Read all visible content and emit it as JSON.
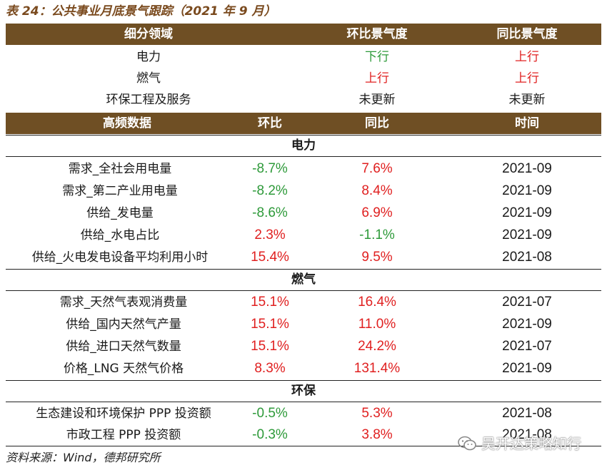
{
  "caption": "表 24：公共事业月底景气跟踪（2021 年 9 月）",
  "header1": {
    "segment": "细分领域",
    "mom": "环比景气度",
    "yoy": "同比景气度"
  },
  "segments": [
    {
      "name": "电力",
      "mom": "下行",
      "mom_dir": "down",
      "yoy": "上行",
      "yoy_dir": "up"
    },
    {
      "name": "燃气",
      "mom": "上行",
      "mom_dir": "up",
      "yoy": "上行",
      "yoy_dir": "up"
    },
    {
      "name": "环保工程及服务",
      "mom": "未更新",
      "mom_dir": "neutral",
      "yoy": "未更新",
      "yoy_dir": "neutral"
    }
  ],
  "header2": {
    "data": "高频数据",
    "mom": "环比",
    "yoy": "同比",
    "time": "时间"
  },
  "sections": [
    {
      "title": "电力",
      "rows": [
        {
          "name": "需求_全社会用电量",
          "mom": "-8.7%",
          "mom_dir": "down",
          "yoy": "7.6%",
          "yoy_dir": "up",
          "time": "2021-09"
        },
        {
          "name": "需求_第二产业用电量",
          "mom": "-8.2%",
          "mom_dir": "down",
          "yoy": "8.4%",
          "yoy_dir": "up",
          "time": "2021-09"
        },
        {
          "name": "供给_发电量",
          "mom": "-8.6%",
          "mom_dir": "down",
          "yoy": "6.9%",
          "yoy_dir": "up",
          "time": "2021-09"
        },
        {
          "name": "供给_水电占比",
          "mom": "2.3%",
          "mom_dir": "up",
          "yoy": "-1.1%",
          "yoy_dir": "down",
          "time": "2021-09"
        },
        {
          "name": "供给_火电发电设备平均利用小时",
          "mom": "15.4%",
          "mom_dir": "up",
          "yoy": "9.5%",
          "yoy_dir": "up",
          "time": "2021-08"
        }
      ]
    },
    {
      "title": "燃气",
      "rows": [
        {
          "name": "需求_天然气表观消费量",
          "mom": "15.1%",
          "mom_dir": "up",
          "yoy": "16.4%",
          "yoy_dir": "up",
          "time": "2021-07"
        },
        {
          "name": "供给_国内天然气产量",
          "mom": "15.1%",
          "mom_dir": "up",
          "yoy": "11.0%",
          "yoy_dir": "up",
          "time": "2021-09"
        },
        {
          "name": "供给_进口天然气数量",
          "mom": "15.1%",
          "mom_dir": "up",
          "yoy": "24.2%",
          "yoy_dir": "up",
          "time": "2021-07"
        },
        {
          "name": "价格_LNG 天然气价格",
          "mom": "8.3%",
          "mom_dir": "up",
          "yoy": "131.4%",
          "yoy_dir": "up",
          "time": "2021-09"
        }
      ]
    },
    {
      "title": "环保",
      "rows": [
        {
          "name": "生态建设和环境保护 PPP 投资额",
          "mom": "-0.5%",
          "mom_dir": "down",
          "yoy": "5.3%",
          "yoy_dir": "up",
          "time": "2021-08"
        },
        {
          "name": "市政工程 PPP 投资额",
          "mom": "-0.3%",
          "mom_dir": "down",
          "yoy": "3.8%",
          "yoy_dir": "up",
          "time": "2021-08"
        }
      ]
    }
  ],
  "source": "资料来源：Wind，德邦研究所",
  "watermark": "吴开达策略知行",
  "colors": {
    "header_bg": "#6f4f24",
    "up": "#e02020",
    "down": "#2e9a3a",
    "caption": "#7a4a1e"
  }
}
